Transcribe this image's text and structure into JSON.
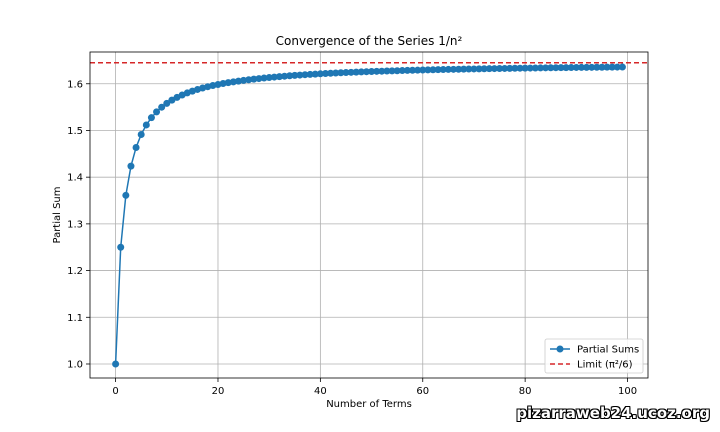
{
  "chart_data": {
    "type": "line",
    "title": "Convergence of the Series 1/n²",
    "xlabel": "Number of Terms",
    "ylabel": "Partial Sum",
    "xlim": [
      -5,
      104
    ],
    "ylim": [
      0.97,
      1.668
    ],
    "xticks": [
      0,
      20,
      40,
      60,
      80,
      100
    ],
    "yticks": [
      1.0,
      1.1,
      1.2,
      1.3,
      1.4,
      1.5,
      1.6
    ],
    "grid": true,
    "legend_position": "lower-right",
    "series": [
      {
        "name": "Partial Sums",
        "color": "#1f77b4",
        "marker": "circle",
        "x_start": 0,
        "values": [
          1.0,
          1.25,
          1.3611,
          1.4236,
          1.4636,
          1.4914,
          1.5118,
          1.5274,
          1.5398,
          1.5498,
          1.558,
          1.565,
          1.5709,
          1.576,
          1.5804,
          1.5843,
          1.5878,
          1.5909,
          1.5937,
          1.5962,
          1.5984,
          1.6005,
          1.6024,
          1.6041,
          1.6057,
          1.6072,
          1.6086,
          1.6099,
          1.6111,
          1.6122,
          1.6133,
          1.6143,
          1.6153,
          1.6162,
          1.6171,
          1.6179,
          1.6186,
          1.6194,
          1.62,
          1.6207,
          1.6213,
          1.6219,
          1.6225,
          1.623,
          1.6235,
          1.624,
          1.6245,
          1.6249,
          1.6254,
          1.6258,
          1.6262,
          1.6266,
          1.6269,
          1.6273,
          1.6276,
          1.6279,
          1.6283,
          1.6286,
          1.6289,
          1.6291,
          1.6294,
          1.6297,
          1.6299,
          1.6302,
          1.6304,
          1.6307,
          1.6309,
          1.6311,
          1.6313,
          1.6315,
          1.6317,
          1.6319,
          1.6321,
          1.6323,
          1.6325,
          1.6327,
          1.6328,
          1.633,
          1.6332,
          1.6333,
          1.6335,
          1.6336,
          1.6338,
          1.6339,
          1.6341,
          1.6342,
          1.6344,
          1.6345,
          1.6346,
          1.6347,
          1.6349,
          1.635,
          1.6351,
          1.6352,
          1.6353,
          1.6354,
          1.6355,
          1.6356,
          1.6357,
          1.6358
        ]
      },
      {
        "name": "Limit (π²/6)",
        "color": "#d62728",
        "style": "dashed",
        "y": 1.6449
      }
    ]
  },
  "watermark": "pizarraweb24.ucoz.org"
}
